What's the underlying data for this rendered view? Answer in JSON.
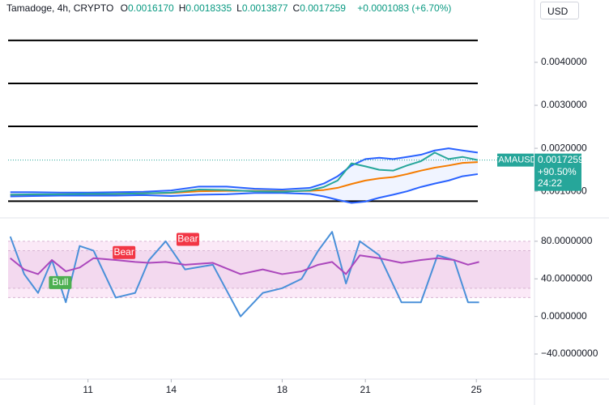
{
  "header": {
    "title": "Tamadoge, 4h, CRYPTO",
    "ohlc": [
      {
        "label": "O",
        "value": "0.0016170"
      },
      {
        "label": "H",
        "value": "0.0018335"
      },
      {
        "label": "L",
        "value": "0.0013877"
      },
      {
        "label": "C",
        "value": "0.0017259"
      }
    ],
    "change": "+0.0001083 (+6.70%)"
  },
  "currency": "USD",
  "price_tag": {
    "symbol": "TAMAUSD",
    "price": 0.0017259,
    "price_label": "0.0017259",
    "change": "+90.50%",
    "countdown": "24:22"
  },
  "chart_data": [
    {
      "type": "line",
      "xlim": [
        8.12,
        26.95
      ],
      "ylim": [
        0.0004,
        0.00545
      ],
      "yticks": [
        {
          "value": 0.001,
          "label": "0.0010000"
        },
        {
          "value": 0.002,
          "label": "0.0020000"
        },
        {
          "value": 0.003,
          "label": "0.0030000"
        },
        {
          "value": 0.004,
          "label": "0.0040000"
        }
      ],
      "hlines": [
        0.00451,
        0.00351,
        0.00251,
        0.00077
      ],
      "hline_color": "#000000",
      "x": [
        8.2,
        9,
        10,
        11,
        12,
        13,
        14,
        15,
        16,
        17,
        18,
        19,
        19.5,
        20,
        20.5,
        21,
        21.5,
        22,
        22.5,
        23,
        23.5,
        24,
        24.5,
        25.05
      ],
      "series": [
        {
          "color": "#2962ff",
          "values": [
            0.00098,
            0.00098,
            0.00097,
            0.00097,
            0.00098,
            0.00099,
            0.00102,
            0.00111,
            0.00111,
            0.00106,
            0.00104,
            0.00108,
            0.00118,
            0.00135,
            0.0016,
            0.00175,
            0.00178,
            0.00175,
            0.0018,
            0.00185,
            0.00195,
            0.002,
            0.00195,
            0.0019
          ]
        },
        {
          "color": "#f57c00",
          "values": [
            0.00092,
            0.00092,
            0.00093,
            0.00093,
            0.00094,
            0.00095,
            0.00096,
            0.001,
            0.00101,
            0.00101,
            0.001,
            0.00101,
            0.00103,
            0.00108,
            0.00117,
            0.00125,
            0.0013,
            0.00133,
            0.0014,
            0.00148,
            0.00155,
            0.0016,
            0.00166,
            0.00168
          ]
        },
        {
          "color": "#2962ff",
          "values": [
            0.00088,
            0.00089,
            0.0009,
            0.0009,
            0.0009,
            0.00091,
            0.00089,
            0.00092,
            0.00093,
            0.00096,
            0.00096,
            0.00094,
            0.00088,
            0.0008,
            0.00073,
            0.00076,
            0.00085,
            0.00092,
            0.001,
            0.0011,
            0.00118,
            0.00125,
            0.00135,
            0.0014
          ]
        },
        {
          "color": "#26a69a",
          "values": [
            0.00092,
            0.00093,
            0.00093,
            0.00094,
            0.00094,
            0.00095,
            0.00097,
            0.00104,
            0.00103,
            0.001,
            0.00099,
            0.00102,
            0.0011,
            0.00125,
            0.00165,
            0.00158,
            0.0015,
            0.00148,
            0.0016,
            0.0017,
            0.0019,
            0.00175,
            0.0018,
            0.0017259
          ]
        }
      ]
    },
    {
      "type": "line",
      "xlim": [
        8.12,
        26.95
      ],
      "ylim": [
        -66.7,
        104
      ],
      "xticks": [
        11,
        14,
        18,
        21,
        25
      ],
      "yticks": [
        {
          "value": -40,
          "label": "−40.0000000"
        },
        {
          "value": 0,
          "label": "0.0000000"
        },
        {
          "value": 40,
          "label": "40.0000000"
        },
        {
          "value": 80,
          "label": "80.0000000"
        }
      ],
      "bands": [
        {
          "range": [
            20,
            80
          ],
          "color": "#fbe9f7"
        },
        {
          "range": [
            30,
            70
          ],
          "color": "#f3d9ef"
        }
      ],
      "x": [
        8.2,
        8.7,
        9.2,
        9.7,
        10.2,
        10.7,
        11.2,
        12,
        12.7,
        13.2,
        13.8,
        14.5,
        15.5,
        16.5,
        17.3,
        18,
        18.7,
        19.3,
        19.8,
        20.3,
        20.8,
        21.5,
        22.3,
        23,
        23.6,
        24.2,
        24.7,
        25.1
      ],
      "series": [
        {
          "color": "#4a90d9",
          "values": [
            85,
            45,
            25,
            60,
            15,
            75,
            70,
            20,
            25,
            60,
            80,
            50,
            55,
            0,
            25,
            30,
            40,
            70,
            90,
            35,
            80,
            65,
            15,
            15,
            65,
            60,
            15,
            15
          ]
        },
        {
          "color": "#ab47bc",
          "values": [
            62,
            50,
            45,
            60,
            48,
            52,
            62,
            60,
            58,
            57,
            58,
            55,
            57,
            45,
            50,
            45,
            48,
            55,
            58,
            45,
            65,
            62,
            57,
            60,
            62,
            60,
            55,
            58
          ]
        }
      ],
      "signals": [
        {
          "label": "Bull",
          "x": 10,
          "y": 36,
          "color": "#4caf50"
        },
        {
          "label": "Bear",
          "x": 12.3,
          "y": 68,
          "color": "#f23645"
        },
        {
          "label": "Bear",
          "x": 14.6,
          "y": 82,
          "color": "#f23645"
        }
      ]
    }
  ]
}
